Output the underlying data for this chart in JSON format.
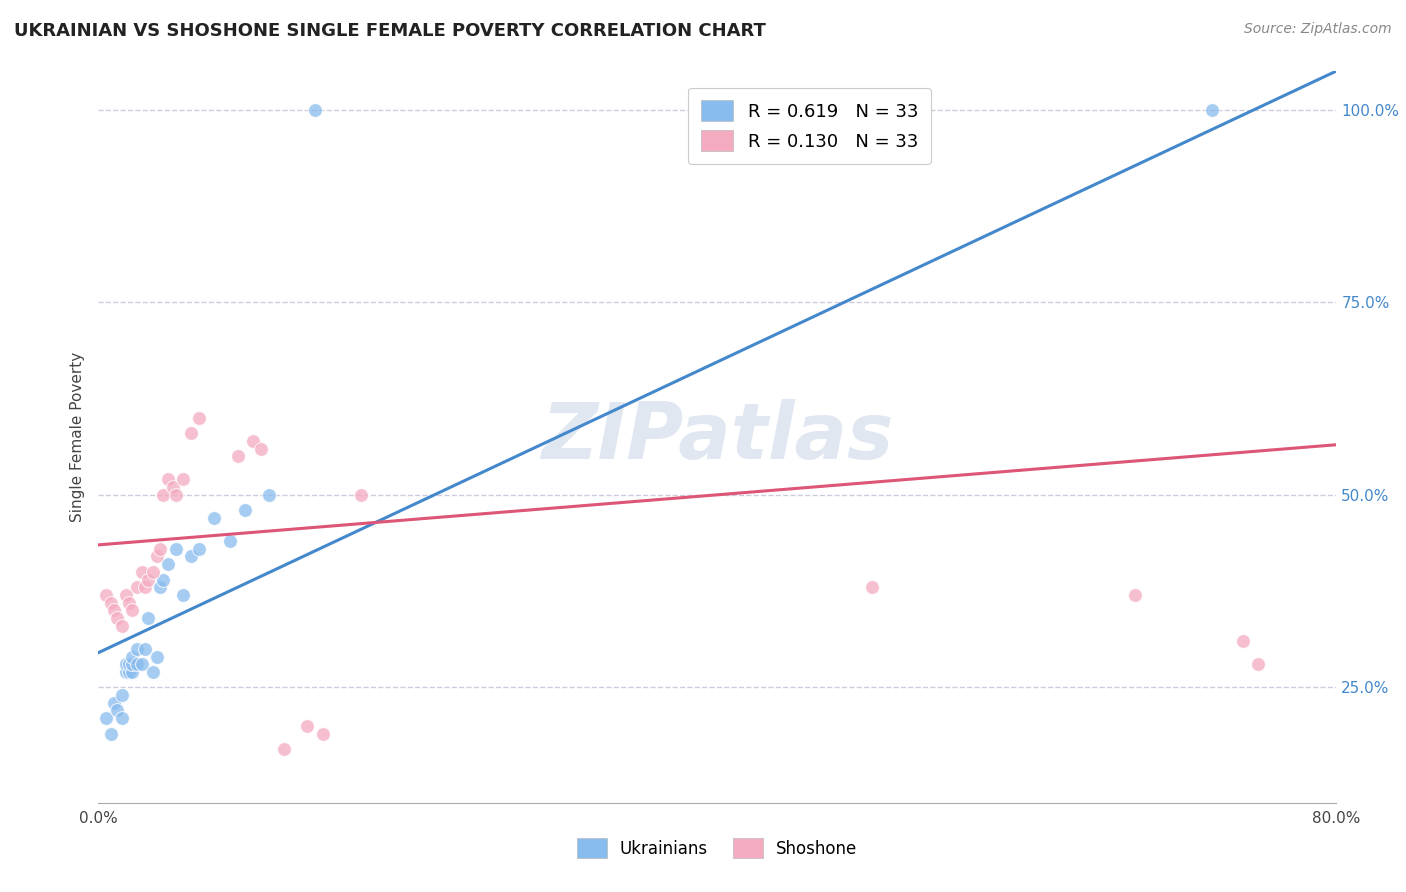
{
  "title": "UKRAINIAN VS SHOSHONE SINGLE FEMALE POVERTY CORRELATION CHART",
  "source": "Source: ZipAtlas.com",
  "ylabel": "Single Female Poverty",
  "watermark": "ZIPatlas",
  "legend_label_ukrainian": "Ukrainians",
  "legend_label_shoshone": "Shoshone",
  "blue_color": "#88bbee",
  "pink_color": "#f4aabf",
  "blue_line_color": "#4488cc",
  "pink_line_color": "#dd5577",
  "blue_ytick_color": "#4488cc",
  "xlim": [
    0.0,
    0.8
  ],
  "ylim": [
    0.1,
    1.05
  ],
  "grid_color": "#ccccdd",
  "ytick_positions": [
    0.25,
    0.5,
    0.75,
    1.0
  ],
  "ytick_labels": [
    "25.0%",
    "50.0%",
    "75.0%",
    "100.0%"
  ],
  "xtick_positions": [
    0.0,
    0.1,
    0.2,
    0.3,
    0.4,
    0.5,
    0.6,
    0.7,
    0.8
  ],
  "xtick_labels": [
    "0.0%",
    "",
    "",
    "",
    "",
    "",
    "",
    "",
    "80.0%"
  ],
  "ukrainian_x": [
    0.005,
    0.008,
    0.01,
    0.012,
    0.015,
    0.015,
    0.018,
    0.018,
    0.02,
    0.02,
    0.022,
    0.022,
    0.022,
    0.025,
    0.025,
    0.028,
    0.03,
    0.032,
    0.035,
    0.038,
    0.04,
    0.042,
    0.045,
    0.05,
    0.055,
    0.06,
    0.065,
    0.075,
    0.085,
    0.095,
    0.11,
    0.14,
    0.72
  ],
  "ukrainian_y": [
    0.21,
    0.19,
    0.23,
    0.22,
    0.21,
    0.24,
    0.27,
    0.28,
    0.27,
    0.28,
    0.27,
    0.28,
    0.29,
    0.28,
    0.3,
    0.28,
    0.3,
    0.34,
    0.27,
    0.29,
    0.38,
    0.39,
    0.41,
    0.43,
    0.37,
    0.42,
    0.43,
    0.47,
    0.44,
    0.48,
    0.5,
    1.0,
    1.0
  ],
  "shoshone_x": [
    0.005,
    0.008,
    0.01,
    0.012,
    0.015,
    0.018,
    0.02,
    0.022,
    0.025,
    0.028,
    0.03,
    0.032,
    0.035,
    0.038,
    0.04,
    0.042,
    0.045,
    0.048,
    0.05,
    0.055,
    0.06,
    0.065,
    0.09,
    0.1,
    0.105,
    0.12,
    0.135,
    0.145,
    0.17,
    0.5,
    0.67,
    0.74,
    0.75
  ],
  "shoshone_y": [
    0.37,
    0.36,
    0.35,
    0.34,
    0.33,
    0.37,
    0.36,
    0.35,
    0.38,
    0.4,
    0.38,
    0.39,
    0.4,
    0.42,
    0.43,
    0.5,
    0.52,
    0.51,
    0.5,
    0.52,
    0.58,
    0.6,
    0.55,
    0.57,
    0.56,
    0.17,
    0.2,
    0.19,
    0.5,
    0.38,
    0.37,
    0.31,
    0.28
  ],
  "blue_trendline_x": [
    0.0,
    0.8
  ],
  "blue_trendline_y": [
    0.295,
    1.05
  ],
  "pink_trendline_x": [
    0.0,
    0.8
  ],
  "pink_trendline_y": [
    0.435,
    0.565
  ]
}
